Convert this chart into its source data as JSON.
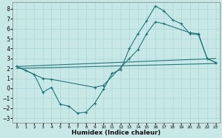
{
  "xlabel": "Humidex (Indice chaleur)",
  "background_color": "#c8e8e8",
  "grid_color": "#a8d4d4",
  "line_color": "#1a7070",
  "xlim": [
    -0.5,
    23.5
  ],
  "ylim": [
    -3.5,
    8.7
  ],
  "yticks": [
    -3,
    -2,
    -1,
    0,
    1,
    2,
    3,
    4,
    5,
    6,
    7,
    8
  ],
  "xticks": [
    0,
    1,
    2,
    3,
    4,
    5,
    6,
    7,
    8,
    9,
    10,
    11,
    12,
    13,
    14,
    15,
    16,
    17,
    18,
    19,
    20,
    21,
    22,
    23
  ],
  "line1_x": [
    0,
    1,
    2,
    3,
    4,
    5,
    6,
    7,
    8,
    9,
    10,
    11,
    12,
    13,
    14,
    15,
    16,
    17,
    18,
    19,
    20,
    21,
    22,
    23
  ],
  "line1_y": [
    2.2,
    1.8,
    1.4,
    -0.4,
    0.1,
    -1.6,
    -1.8,
    -2.5,
    -2.4,
    -1.5,
    -0.1,
    1.5,
    1.9,
    4.0,
    5.5,
    6.8,
    8.3,
    7.8,
    6.9,
    6.5,
    5.5,
    5.4,
    3.0,
    2.6
  ],
  "line2_x": [
    0,
    3,
    4,
    9,
    10,
    13,
    14,
    15,
    16,
    17,
    20,
    21,
    22,
    23
  ],
  "line2_y": [
    2.2,
    1.0,
    0.9,
    0.1,
    0.3,
    3.0,
    3.9,
    5.5,
    6.7,
    6.5,
    5.6,
    5.5,
    3.0,
    2.6
  ],
  "line3_x": [
    0,
    23
  ],
  "line3_y": [
    2.2,
    3.0
  ],
  "line4_x": [
    0,
    23
  ],
  "line4_y": [
    2.0,
    2.5
  ]
}
